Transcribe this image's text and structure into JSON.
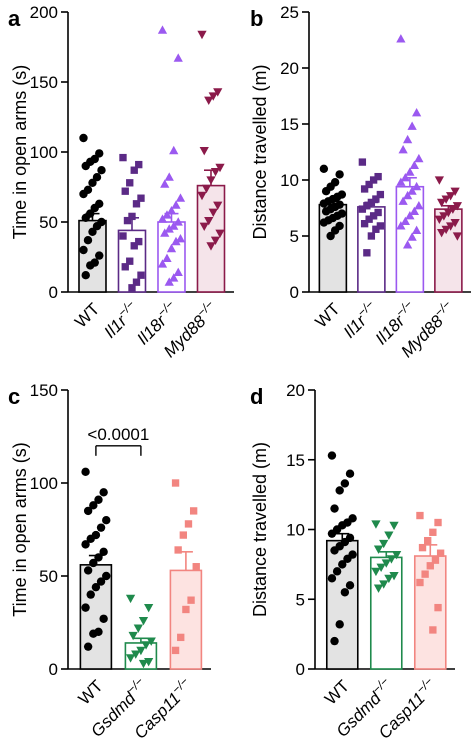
{
  "chart_data": [
    {
      "panel": "a",
      "type": "bar",
      "ylabel": "Time in open arms (s)",
      "ylim": [
        0,
        200
      ],
      "yticks": [
        0,
        50,
        100,
        150,
        200
      ],
      "categories": [
        {
          "base": "WT",
          "sup": ""
        },
        {
          "base": "Il1r",
          "sup": "−/−"
        },
        {
          "base": "Il18r",
          "sup": "−/−"
        },
        {
          "base": "Myd88",
          "sup": "−/−"
        }
      ],
      "series": [
        {
          "mean": 51,
          "sem": 5,
          "color": "#000000",
          "fill": "#e3e3e3",
          "marker": "circle",
          "points": [
            110,
            99,
            95,
            93,
            90,
            87,
            82,
            78,
            73,
            70,
            63,
            60,
            56,
            53,
            50,
            47,
            43,
            37,
            30,
            26,
            21,
            19,
            12
          ]
        },
        {
          "mean": 44,
          "sem": 9,
          "color": "#5b2a86",
          "fill": "#ffffff",
          "marker": "square",
          "points": [
            96,
            91,
            87,
            78,
            72,
            67,
            63,
            54,
            51,
            40,
            36,
            33,
            22,
            18,
            12,
            7,
            3
          ]
        },
        {
          "mean": 50,
          "sem": 6,
          "color": "#9b59f0",
          "fill": "#ffffff",
          "marker": "triangle",
          "points": [
            187,
            167,
            101,
            82,
            77,
            67,
            62,
            58,
            55,
            52,
            50,
            47,
            45,
            42,
            38,
            36,
            31,
            24,
            20,
            14,
            10,
            7
          ]
        },
        {
          "mean": 76,
          "sem": 11,
          "color": "#8b1a4a",
          "fill": "#f5e4ea",
          "marker": "triangle-down",
          "points": [
            184,
            143,
            140,
            137,
            101,
            89,
            86,
            80,
            74,
            69,
            62,
            57,
            51,
            47,
            42,
            37,
            33
          ]
        }
      ]
    },
    {
      "panel": "b",
      "type": "bar",
      "ylabel": "Distance travelled (m)",
      "ylim": [
        0,
        25
      ],
      "yticks": [
        0,
        5,
        10,
        15,
        20,
        25
      ],
      "categories": [
        {
          "base": "WT",
          "sup": ""
        },
        {
          "base": "Il1r",
          "sup": "−/−"
        },
        {
          "base": "Il18r",
          "sup": "−/−"
        },
        {
          "base": "Myd88",
          "sup": "−/−"
        }
      ],
      "series": [
        {
          "mean": 7.8,
          "sem": 0.3,
          "color": "#000000",
          "fill": "#e3e3e3",
          "marker": "circle",
          "points": [
            11.0,
            10.5,
            9.8,
            9.4,
            9.0,
            8.7,
            8.5,
            8.3,
            8.1,
            7.9,
            7.8,
            7.6,
            7.4,
            7.2,
            7.0,
            6.8,
            6.6,
            6.4,
            6.2,
            5.9,
            5.5,
            5.0
          ]
        },
        {
          "mean": 7.6,
          "sem": 0.4,
          "color": "#5b2a86",
          "fill": "#ffffff",
          "marker": "square",
          "points": [
            11.6,
            10.3,
            10.0,
            9.6,
            9.2,
            8.7,
            8.3,
            8.0,
            7.7,
            7.4,
            7.1,
            6.8,
            6.5,
            6.1,
            5.9,
            5.6,
            5.0,
            3.5
          ]
        },
        {
          "mean": 9.4,
          "sem": 0.8,
          "color": "#9b59f0",
          "fill": "#ffffff",
          "marker": "triangle",
          "points": [
            22.6,
            16.0,
            14.8,
            13.6,
            12.7,
            11.9,
            11.3,
            10.7,
            10.2,
            9.8,
            9.4,
            9.0,
            8.6,
            8.1,
            7.7,
            7.2,
            6.8,
            6.3,
            5.9,
            5.5,
            4.9,
            4.2
          ]
        },
        {
          "mean": 7.4,
          "sem": 0.3,
          "color": "#8b1a4a",
          "fill": "#f5e4ea",
          "marker": "triangle-down",
          "points": [
            10.0,
            9.0,
            8.6,
            8.3,
            8.0,
            7.7,
            7.4,
            7.1,
            6.8,
            6.5,
            6.2,
            5.9,
            5.6,
            5.3,
            5.0
          ]
        }
      ]
    },
    {
      "panel": "c",
      "type": "bar",
      "ylabel": "Time in open arms (s)",
      "ylim": [
        0,
        150
      ],
      "yticks": [
        0,
        50,
        100,
        150
      ],
      "categories": [
        {
          "base": "WT",
          "sup": ""
        },
        {
          "base": "Gsdmd",
          "sup": "−/−"
        },
        {
          "base": "Casp11",
          "sup": "−/−"
        }
      ],
      "series": [
        {
          "mean": 56,
          "sem": 5,
          "color": "#000000",
          "fill": "#e3e3e3",
          "marker": "circle",
          "points": [
            106,
            95,
            91,
            88,
            85,
            80,
            76,
            72,
            70,
            67,
            63,
            60,
            57,
            53,
            50,
            47,
            44,
            40,
            33,
            27,
            20,
            19,
            12
          ]
        },
        {
          "mean": 14,
          "sem": 2.5,
          "color": "#1f8a4c",
          "fill": "#ffffff",
          "marker": "triangle-down",
          "points": [
            38,
            33,
            26,
            22,
            18,
            15,
            13,
            10,
            8,
            6,
            4,
            3
          ]
        },
        {
          "mean": 53,
          "sem": 10,
          "color": "#f28580",
          "fill": "#fde3e1",
          "marker": "square",
          "points": [
            100,
            85,
            78,
            72,
            64,
            55,
            37,
            32,
            17,
            10
          ]
        }
      ],
      "annotations": [
        {
          "text": "<0.0001",
          "from": 0,
          "to": 1
        }
      ]
    },
    {
      "panel": "d",
      "type": "bar",
      "ylabel": "Distance travelled (m)",
      "ylim": [
        0,
        20
      ],
      "yticks": [
        0,
        5,
        10,
        15,
        20
      ],
      "categories": [
        {
          "base": "WT",
          "sup": ""
        },
        {
          "base": "Gsdmd",
          "sup": "−/−"
        },
        {
          "base": "Casp11",
          "sup": "−/−"
        }
      ],
      "series": [
        {
          "mean": 9.2,
          "sem": 0.5,
          "color": "#000000",
          "fill": "#e3e3e3",
          "marker": "circle",
          "points": [
            15.3,
            14.0,
            13.3,
            12.8,
            11.5,
            10.8,
            10.5,
            10.3,
            10.0,
            9.7,
            9.4,
            9.1,
            8.8,
            8.5,
            8.2,
            7.9,
            7.5,
            7.0,
            6.5,
            6.0,
            5.5,
            3.2,
            2.0
          ]
        },
        {
          "mean": 8.0,
          "sem": 0.4,
          "color": "#1f8a4c",
          "fill": "#ffffff",
          "marker": "triangle-down",
          "points": [
            10.4,
            10.3,
            9.6,
            9.0,
            8.6,
            8.2,
            7.9,
            7.6,
            7.3,
            7.0,
            6.7,
            6.5,
            6.1,
            5.8
          ]
        },
        {
          "mean": 8.1,
          "sem": 0.8,
          "color": "#f28580",
          "fill": "#fde3e1",
          "marker": "square",
          "points": [
            11.0,
            10.5,
            9.8,
            9.2,
            8.7,
            8.3,
            7.8,
            7.4,
            6.8,
            6.2,
            4.4,
            2.8
          ]
        }
      ]
    }
  ]
}
